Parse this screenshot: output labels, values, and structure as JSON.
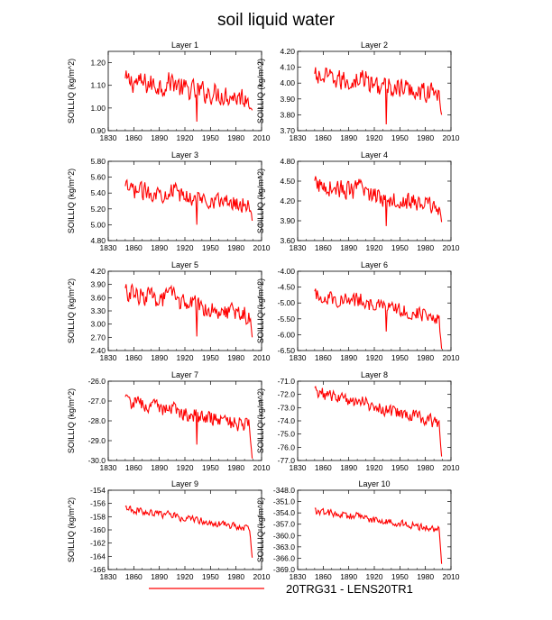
{
  "title": "soil liquid water",
  "legend": {
    "label": "20TRG31 - LENS20TR1",
    "color": "#ff0000"
  },
  "chart_data": [
    {
      "type": "line",
      "title": "Layer 1",
      "ylabel": "SOILLIQ  (kg/m^2)",
      "xlim": [
        1830,
        2010
      ],
      "xticks": [
        1830,
        1860,
        1890,
        1920,
        1950,
        1980,
        2010
      ],
      "ylim": [
        0.9,
        1.25
      ],
      "yticks": [
        "0.90",
        "1.00",
        "1.10",
        "1.20"
      ],
      "ytick_values": [
        0.9,
        1.0,
        1.1,
        1.2
      ],
      "x_start": 1850,
      "x_end": 1999,
      "base_start": 1.12,
      "base_end": 1.04,
      "noise": 0.045,
      "drop_year": 1934,
      "drop_value": 0.94,
      "tail": 0.99
    },
    {
      "type": "line",
      "title": "Layer 2",
      "ylabel": "SOILLIQ  (kg/m^2)",
      "xlim": [
        1830,
        2010
      ],
      "xticks": [
        1830,
        1860,
        1890,
        1920,
        1950,
        1980,
        2010
      ],
      "ylim": [
        3.7,
        4.2
      ],
      "yticks": [
        "3.70",
        "3.80",
        "3.90",
        "4.00",
        "4.10",
        "4.20"
      ],
      "ytick_values": [
        3.7,
        3.8,
        3.9,
        4.0,
        4.1,
        4.2
      ],
      "x_start": 1850,
      "x_end": 1999,
      "base_start": 4.04,
      "base_end": 3.93,
      "noise": 0.06,
      "drop_year": 1934,
      "drop_value": 3.74,
      "tail": 3.8
    },
    {
      "type": "line",
      "title": "Layer 3",
      "ylabel": "SOILLIQ  (kg/m^2)",
      "xlim": [
        1830,
        2010
      ],
      "xticks": [
        1830,
        1860,
        1890,
        1920,
        1950,
        1980,
        2010
      ],
      "ylim": [
        4.8,
        5.8
      ],
      "yticks": [
        "4.80",
        "5.00",
        "5.20",
        "5.40",
        "5.60",
        "5.80"
      ],
      "ytick_values": [
        4.8,
        5.0,
        5.2,
        5.4,
        5.6,
        5.8
      ],
      "x_start": 1850,
      "x_end": 1999,
      "base_start": 5.45,
      "base_end": 5.25,
      "noise": 0.1,
      "drop_year": 1934,
      "drop_value": 5.0,
      "tail": 5.05
    },
    {
      "type": "line",
      "title": "Layer 4",
      "ylabel": "SOILLIQ  (kg/m^2)",
      "xlim": [
        1830,
        2010
      ],
      "xticks": [
        1830,
        1860,
        1890,
        1920,
        1950,
        1980,
        2010
      ],
      "ylim": [
        3.6,
        4.8
      ],
      "yticks": [
        "3.60",
        "3.90",
        "4.20",
        "4.50",
        "4.80"
      ],
      "ytick_values": [
        3.6,
        3.9,
        4.2,
        4.5,
        4.8
      ],
      "x_start": 1850,
      "x_end": 1999,
      "base_start": 4.45,
      "base_end": 4.1,
      "noise": 0.13,
      "drop_year": 1934,
      "drop_value": 3.82,
      "tail": 3.88
    },
    {
      "type": "line",
      "title": "Layer 5",
      "ylabel": "SOILLIQ  (kg/m^2)",
      "xlim": [
        1830,
        2010
      ],
      "xticks": [
        1830,
        1860,
        1890,
        1920,
        1950,
        1980,
        2010
      ],
      "ylim": [
        2.4,
        4.2
      ],
      "yticks": [
        "2.40",
        "2.70",
        "3.00",
        "3.30",
        "3.60",
        "3.90",
        "4.20"
      ],
      "ytick_values": [
        2.4,
        2.7,
        3.0,
        3.3,
        3.6,
        3.9,
        4.2
      ],
      "x_start": 1850,
      "x_end": 1999,
      "base_start": 3.72,
      "base_end": 3.2,
      "noise": 0.2,
      "drop_year": 1934,
      "drop_value": 2.72,
      "tail": 2.7
    },
    {
      "type": "line",
      "title": "Layer 6",
      "ylabel": "SOILLIQ  (kg/m^2)",
      "xlim": [
        1830,
        2010
      ],
      "xticks": [
        1830,
        1860,
        1890,
        1920,
        1950,
        1980,
        2010
      ],
      "ylim": [
        -6.5,
        -4.0
      ],
      "yticks": [
        "-6.50",
        "-6.00",
        "-5.50",
        "-5.00",
        "-4.50",
        "-4.00"
      ],
      "ytick_values": [
        -6.5,
        -6.0,
        -5.5,
        -5.0,
        -4.5,
        -4.0
      ],
      "x_start": 1850,
      "x_end": 1999,
      "base_start": -4.75,
      "base_end": -5.45,
      "noise": 0.22,
      "drop_year": 1934,
      "drop_value": -5.9,
      "tail": -6.45
    },
    {
      "type": "line",
      "title": "Layer 7",
      "ylabel": "SOILLIQ  (kg/m^2)",
      "xlim": [
        1830,
        2010
      ],
      "xticks": [
        1830,
        1860,
        1890,
        1920,
        1950,
        1980,
        2010
      ],
      "ylim": [
        -30.0,
        -26.0
      ],
      "yticks": [
        "-30.0",
        "-29.0",
        "-28.0",
        "-27.0",
        "-26.0"
      ],
      "ytick_values": [
        -30.0,
        -29.0,
        -28.0,
        -27.0,
        -26.0
      ],
      "x_start": 1850,
      "x_end": 1999,
      "base_start": -27.0,
      "base_end": -28.3,
      "noise": 0.35,
      "drop_year": 1934,
      "drop_value": -29.2,
      "tail": -29.9
    },
    {
      "type": "line",
      "title": "Layer 8",
      "ylabel": "SOILLIQ  (kg/m^2)",
      "xlim": [
        1830,
        2010
      ],
      "xticks": [
        1830,
        1860,
        1890,
        1920,
        1950,
        1980,
        2010
      ],
      "ylim": [
        -77.0,
        -71.0
      ],
      "yticks": [
        "-77.0",
        "-76.0",
        "-75.0",
        "-74.0",
        "-73.0",
        "-72.0",
        "-71.0"
      ],
      "ytick_values": [
        -77.0,
        -76.0,
        -75.0,
        -74.0,
        -73.0,
        -72.0,
        -71.0
      ],
      "x_start": 1850,
      "x_end": 1999,
      "base_start": -71.8,
      "base_end": -74.2,
      "noise": 0.45,
      "drop_year": null,
      "drop_value": null,
      "tail": -76.7
    },
    {
      "type": "line",
      "title": "Layer 9",
      "ylabel": "SOILLIQ  (kg/m^2)",
      "xlim": [
        1830,
        2010
      ],
      "xticks": [
        1830,
        1860,
        1890,
        1920,
        1950,
        1980,
        2010
      ],
      "ylim": [
        -166,
        -154
      ],
      "yticks": [
        "-166",
        "-164",
        "-162",
        "-160",
        "-158",
        "-156",
        "-154"
      ],
      "ytick_values": [
        -166,
        -164,
        -162,
        -160,
        -158,
        -156,
        -154
      ],
      "x_start": 1850,
      "x_end": 1999,
      "base_start": -156.8,
      "base_end": -159.8,
      "noise": 0.5,
      "drop_year": null,
      "drop_value": null,
      "tail": -164.2
    },
    {
      "type": "line",
      "title": "Layer 10",
      "ylabel": "SOILLIQ  (kg/m^2)",
      "xlim": [
        1830,
        2010
      ],
      "xticks": [
        1830,
        1860,
        1890,
        1920,
        1950,
        1980,
        2010
      ],
      "ylim": [
        -369.0,
        -348.0
      ],
      "yticks": [
        "-369.0",
        "-366.0",
        "-363.0",
        "-360.0",
        "-357.0",
        "-354.0",
        "-351.0",
        "-348.0"
      ],
      "ytick_values": [
        -369.0,
        -366.0,
        -363.0,
        -360.0,
        -357.0,
        -354.0,
        -351.0,
        -348.0
      ],
      "x_start": 1850,
      "x_end": 1999,
      "base_start": -353.5,
      "base_end": -358.5,
      "noise": 0.9,
      "drop_year": null,
      "drop_value": null,
      "tail": -367.5
    }
  ]
}
